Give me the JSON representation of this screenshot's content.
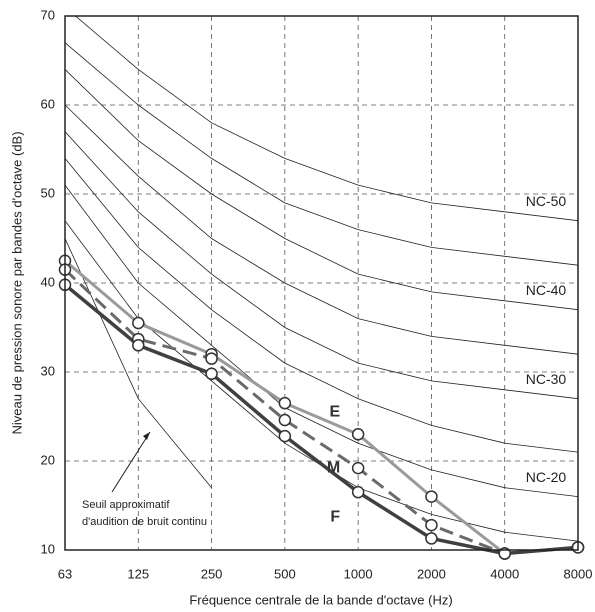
{
  "chart_data": {
    "type": "line",
    "x_label": "Fréquence centrale de la bande d'octave (Hz)",
    "y_label": "Niveau de pression sonore par bandes d'octave (dB)",
    "categories": [
      "63",
      "125",
      "250",
      "500",
      "1000",
      "2000",
      "4000",
      "8000"
    ],
    "ylim": [
      10,
      70
    ],
    "yticks": [
      10,
      20,
      30,
      40,
      50,
      60,
      70
    ],
    "grid": true,
    "series": [
      {
        "name": "E",
        "color": "#9a9a9a",
        "values": [
          42.5,
          35.5,
          32,
          26.5,
          23,
          16,
          9.6,
          10.3
        ]
      },
      {
        "name": "M",
        "color": "#6a6a6a",
        "values": [
          41.5,
          33.7,
          31.5,
          24.6,
          19.2,
          12.8,
          9.6,
          10.3
        ]
      },
      {
        "name": "F",
        "color": "#404040",
        "values": [
          39.8,
          33,
          29.8,
          22.8,
          16.5,
          11.3,
          9.6,
          10.3
        ]
      }
    ],
    "nc_curves": [
      {
        "name": "NC-50",
        "values": [
          71,
          64,
          58,
          54,
          51,
          49,
          48,
          47
        ]
      },
      {
        "values": [
          67,
          60,
          54,
          49,
          46,
          44,
          43,
          42
        ]
      },
      {
        "name": "NC-40",
        "values": [
          64,
          56,
          50,
          45,
          41,
          39,
          38,
          37
        ]
      },
      {
        "values": [
          60,
          52,
          45,
          40,
          36,
          34,
          33,
          32
        ]
      },
      {
        "name": "NC-30",
        "values": [
          57,
          48,
          41,
          35,
          31,
          29,
          28,
          27
        ]
      },
      {
        "values": [
          54,
          44,
          37,
          31,
          27,
          24,
          22,
          21
        ]
      },
      {
        "name": "NC-20",
        "values": [
          51,
          40,
          33,
          26,
          22,
          19,
          17,
          16
        ]
      },
      {
        "values": [
          47,
          36,
          29,
          22,
          17,
          14,
          12,
          11
        ]
      }
    ],
    "threshold": {
      "values": [
        45,
        27,
        17,
        null,
        null,
        null,
        null,
        null
      ],
      "label": [
        "Seuil approximatif",
        "d'audition de bruit continu"
      ]
    }
  }
}
